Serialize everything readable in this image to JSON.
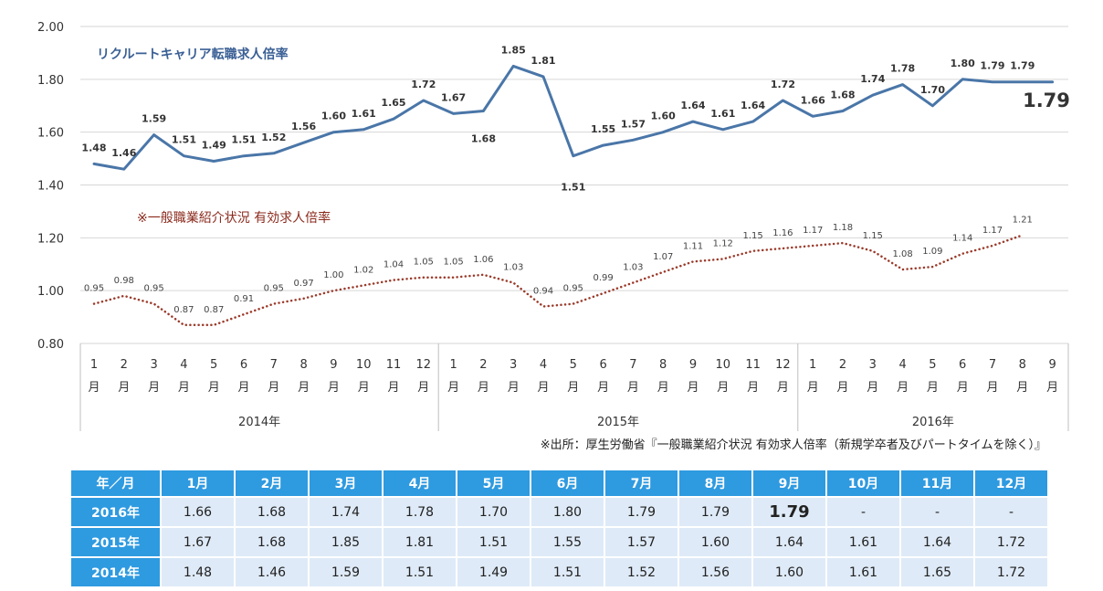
{
  "chart_data": {
    "type": "line",
    "ylim": [
      0.8,
      2.0
    ],
    "yticks": [
      "2.00",
      "1.80",
      "1.60",
      "1.40",
      "1.20",
      "1.00",
      "0.80"
    ],
    "grid": true,
    "month_labels": [
      "1",
      "2",
      "3",
      "4",
      "5",
      "6",
      "7",
      "8",
      "9",
      "10",
      "11",
      "12"
    ],
    "month_unit": "月",
    "years": [
      {
        "label": "2014年",
        "months": 12
      },
      {
        "label": "2015年",
        "months": 12
      },
      {
        "label": "2016年",
        "months": 9
      }
    ],
    "series": [
      {
        "name": "リクルートキャリア転職求人倍率",
        "color": "#4a76a8",
        "style": "solid",
        "values": [
          1.48,
          1.46,
          1.59,
          1.51,
          1.49,
          1.51,
          1.52,
          1.56,
          1.6,
          1.61,
          1.65,
          1.72,
          1.67,
          1.68,
          1.85,
          1.81,
          1.51,
          1.55,
          1.57,
          1.6,
          1.64,
          1.61,
          1.64,
          1.72,
          1.66,
          1.68,
          1.74,
          1.78,
          1.7,
          1.8,
          1.79,
          1.79,
          1.79
        ],
        "labels": [
          "1.48",
          "1.46",
          "1.59",
          "1.51",
          "1.49",
          "1.51",
          "1.52",
          "1.56",
          "1.60",
          "1.61",
          "1.65",
          "1.72",
          "1.67",
          "1.68",
          "1.85",
          "1.81",
          "1.51",
          "1.55",
          "1.57",
          "1.60",
          "1.64",
          "1.61",
          "1.64",
          "1.72",
          "1.66",
          "1.68",
          "1.74",
          "1.78",
          "1.70",
          "1.80",
          "1.79",
          "1.79",
          "1.79"
        ]
      },
      {
        "name": "※一般職業紹介状況 有効求人倍率",
        "color": "#9b3a2a",
        "style": "dotted",
        "values": [
          0.95,
          0.98,
          0.95,
          0.87,
          0.87,
          0.91,
          0.95,
          0.97,
          1.0,
          1.02,
          1.04,
          1.05,
          1.05,
          1.06,
          1.03,
          0.94,
          0.95,
          0.99,
          1.03,
          1.07,
          1.11,
          1.12,
          1.15,
          1.16,
          1.17,
          1.18,
          1.15,
          1.08,
          1.09,
          1.14,
          1.17,
          1.21
        ],
        "labels": [
          "0.95",
          "0.98",
          "0.95",
          "0.87",
          "0.87",
          "0.91",
          "0.95",
          "0.97",
          "1.00",
          "1.02",
          "1.04",
          "1.05",
          "1.05",
          "1.06",
          "1.03",
          "0.94",
          "0.95",
          "0.99",
          "1.03",
          "1.07",
          "1.11",
          "1.12",
          "1.15",
          "1.16",
          "1.17",
          "1.18",
          "1.15",
          "1.08",
          "1.09",
          "1.14",
          "1.17",
          "1.21"
        ]
      }
    ]
  },
  "last_value_label": "1.79",
  "source_note": "※出所：厚生労働省『一般職業紹介状況 有効求人倍率（新規学卒者及びパートタイムを除く）』",
  "table": {
    "corner": "年／月",
    "months": [
      "1月",
      "2月",
      "3月",
      "4月",
      "5月",
      "6月",
      "7月",
      "8月",
      "9月",
      "10月",
      "11月",
      "12月"
    ],
    "rows": [
      {
        "year": "2016年",
        "values": [
          "1.66",
          "1.68",
          "1.74",
          "1.78",
          "1.70",
          "1.80",
          "1.79",
          "1.79",
          "1.79",
          "-",
          "-",
          "-"
        ]
      },
      {
        "year": "2015年",
        "values": [
          "1.67",
          "1.68",
          "1.85",
          "1.81",
          "1.51",
          "1.55",
          "1.57",
          "1.60",
          "1.64",
          "1.61",
          "1.64",
          "1.72"
        ]
      },
      {
        "year": "2014年",
        "values": [
          "1.48",
          "1.46",
          "1.59",
          "1.51",
          "1.49",
          "1.51",
          "1.52",
          "1.56",
          "1.60",
          "1.61",
          "1.65",
          "1.72"
        ]
      }
    ],
    "highlight": {
      "row": 0,
      "col": 8
    }
  }
}
